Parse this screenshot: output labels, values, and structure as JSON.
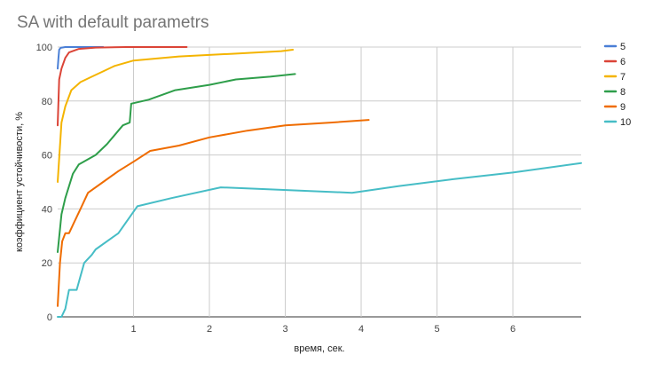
{
  "chart_data": {
    "type": "line",
    "title": "SA with default parametrs",
    "xlabel": "время, сек.",
    "ylabel": "коэффициент устойчивости, %",
    "xlim": [
      0,
      6.9
    ],
    "ylim": [
      0,
      100
    ],
    "xticks": [
      1,
      2,
      3,
      4,
      5,
      6
    ],
    "yticks": [
      0,
      20,
      40,
      60,
      80,
      100
    ],
    "grid": true,
    "legend_position": "right",
    "series": [
      {
        "name": "5",
        "color": "#4a7fd6",
        "points": [
          [
            0.0,
            92
          ],
          [
            0.01,
            96
          ],
          [
            0.02,
            99
          ],
          [
            0.04,
            99.7
          ],
          [
            0.1,
            100
          ],
          [
            0.3,
            100
          ],
          [
            0.6,
            100
          ]
        ]
      },
      {
        "name": "6",
        "color": "#db4437",
        "points": [
          [
            0.0,
            71
          ],
          [
            0.02,
            88
          ],
          [
            0.05,
            92
          ],
          [
            0.1,
            96
          ],
          [
            0.15,
            98
          ],
          [
            0.28,
            99.3
          ],
          [
            0.5,
            99.8
          ],
          [
            0.9,
            100
          ],
          [
            1.7,
            100
          ]
        ]
      },
      {
        "name": "7",
        "color": "#f4b400",
        "points": [
          [
            0.0,
            50
          ],
          [
            0.05,
            72
          ],
          [
            0.1,
            78
          ],
          [
            0.18,
            84
          ],
          [
            0.3,
            87
          ],
          [
            0.45,
            89
          ],
          [
            0.6,
            91
          ],
          [
            0.75,
            93
          ],
          [
            1.0,
            95
          ],
          [
            1.6,
            96.5
          ],
          [
            2.3,
            97.5
          ],
          [
            2.95,
            98.5
          ],
          [
            3.1,
            99
          ]
        ]
      },
      {
        "name": "8",
        "color": "#2e9e4a",
        "points": [
          [
            0.0,
            24
          ],
          [
            0.05,
            38
          ],
          [
            0.1,
            44
          ],
          [
            0.2,
            53
          ],
          [
            0.28,
            56.5
          ],
          [
            0.5,
            60
          ],
          [
            0.65,
            64
          ],
          [
            0.8,
            69
          ],
          [
            0.86,
            71
          ],
          [
            0.95,
            72
          ],
          [
            0.97,
            79
          ],
          [
            1.2,
            80.5
          ],
          [
            1.55,
            84
          ],
          [
            2.0,
            86
          ],
          [
            2.35,
            88
          ],
          [
            2.8,
            89
          ],
          [
            3.13,
            90
          ]
        ]
      },
      {
        "name": "9",
        "color": "#ef6c00",
        "points": [
          [
            0.0,
            4
          ],
          [
            0.03,
            20
          ],
          [
            0.06,
            28
          ],
          [
            0.1,
            31
          ],
          [
            0.15,
            31
          ],
          [
            0.2,
            34
          ],
          [
            0.3,
            40
          ],
          [
            0.4,
            46
          ],
          [
            0.6,
            50
          ],
          [
            0.8,
            54
          ],
          [
            1.0,
            57.5
          ],
          [
            1.22,
            61.5
          ],
          [
            1.6,
            63.5
          ],
          [
            2.0,
            66.5
          ],
          [
            2.5,
            69
          ],
          [
            3.0,
            71
          ],
          [
            3.6,
            72
          ],
          [
            4.1,
            73
          ]
        ]
      },
      {
        "name": "10",
        "color": "#46bdc6",
        "points": [
          [
            0.0,
            0
          ],
          [
            0.05,
            0
          ],
          [
            0.1,
            3
          ],
          [
            0.15,
            10
          ],
          [
            0.25,
            10
          ],
          [
            0.35,
            20
          ],
          [
            0.45,
            23
          ],
          [
            0.5,
            25
          ],
          [
            0.7,
            29
          ],
          [
            0.8,
            31
          ],
          [
            1.05,
            41
          ],
          [
            1.5,
            44
          ],
          [
            2.15,
            48
          ],
          [
            2.6,
            47.5
          ],
          [
            3.88,
            46
          ],
          [
            4.5,
            48.5
          ],
          [
            5.2,
            51
          ],
          [
            6.0,
            53.5
          ],
          [
            6.9,
            57
          ]
        ]
      }
    ]
  }
}
